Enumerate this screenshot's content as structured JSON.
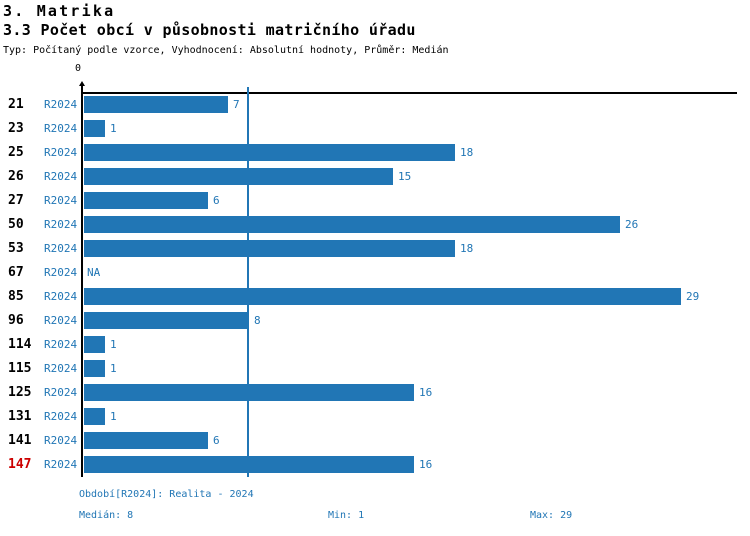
{
  "header": {
    "title": "3. Matrika",
    "subtitle": "3.3 Počet obcí v působnosti matričního úřadu",
    "meta": "Typ: Počítaný podle vzorce, Vyhodnocení: Absolutní hodnoty, Průměr: Medián"
  },
  "colors": {
    "accent": "#2176b5",
    "highlight": "#cc0000",
    "axis": "#000000",
    "background": "#ffffff"
  },
  "chart_data": {
    "type": "bar",
    "orientation": "horizontal",
    "title": "3.3 Počet obcí v působnosti matričního úřadu",
    "x_origin_label": "0",
    "categories": [
      "21",
      "23",
      "25",
      "26",
      "27",
      "50",
      "53",
      "67",
      "85",
      "96",
      "114",
      "115",
      "125",
      "131",
      "141",
      "147"
    ],
    "series": [
      {
        "name": "R2024",
        "values": [
          7,
          1,
          18,
          15,
          6,
          26,
          18,
          null,
          29,
          8,
          1,
          1,
          16,
          1,
          6,
          16
        ],
        "value_labels": [
          "7",
          "1",
          "18",
          "15",
          "6",
          "26",
          "18",
          "NA",
          "29",
          "8",
          "1",
          "1",
          "16",
          "1",
          "6",
          "16"
        ]
      }
    ],
    "highlighted_category": "147",
    "median_line_value": 8,
    "median": 8,
    "min": 1,
    "max": 29,
    "xlim": [
      0,
      31.8
    ],
    "grid": false,
    "legend_position": "none"
  },
  "footer": {
    "period": "Období[R2024]: Realita - 2024",
    "median": "Medián: 8",
    "min": "Min: 1",
    "max": "Max: 29"
  }
}
